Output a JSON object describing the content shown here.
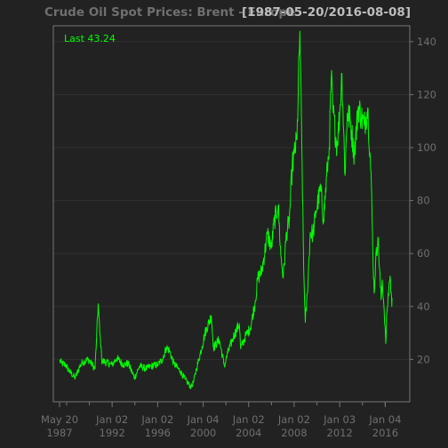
{
  "colors": {
    "background": "#222222",
    "frame": "#777777",
    "grid": "#303030",
    "series": "#00ff00",
    "title_left": "#6f6f6f",
    "title_right": "#bdbdbd",
    "tick_text": "#6f6f6f"
  },
  "chart_data": {
    "type": "line",
    "title": "Crude Oil Spot Prices: Brent - Europe",
    "date_range": "[1987-05-20/2016-08-08]",
    "last_label": "Last 43.24",
    "ylim": [
      4,
      146
    ],
    "yticks": [
      20,
      40,
      60,
      80,
      100,
      120,
      140
    ],
    "x_ticks": [
      {
        "date": "1987-05-20",
        "line1": "May 20",
        "line2": "1987"
      },
      {
        "date": "1992-01-02",
        "line1": "Jan 02",
        "line2": "1992"
      },
      {
        "date": "1996-01-02",
        "line1": "Jan 02",
        "line2": "1996"
      },
      {
        "date": "2000-01-04",
        "line1": "Jan 04",
        "line2": "2000"
      },
      {
        "date": "2004-01-02",
        "line1": "Jan 02",
        "line2": "2004"
      },
      {
        "date": "2008-01-02",
        "line1": "Jan 02",
        "line2": "2008"
      },
      {
        "date": "2012-01-03",
        "line1": "Jan 03",
        "line2": "2012"
      },
      {
        "date": "2016-01-04",
        "line1": "Jan 04",
        "line2": "2016"
      }
    ],
    "minor_tick_years": [
      1988,
      1990,
      1994,
      1998,
      2002,
      2006,
      2010,
      2014,
      2016
    ],
    "series": [
      {
        "x": [
          "1987-05-20",
          "1987-08-01",
          "1987-12-01",
          "1988-04-01",
          "1988-10-01",
          "1989-03-01",
          "1989-06-01",
          "1989-12-01",
          "1990-05-01",
          "1990-07-01",
          "1990-08-20",
          "1990-10-11",
          "1990-12-01",
          "1991-01-10",
          "1991-02-01",
          "1991-06-01",
          "1992-01-02",
          "1992-06-01",
          "1993-01-01",
          "1993-06-01",
          "1993-12-20",
          "1994-06-01",
          "1995-01-01",
          "1995-06-01",
          "1996-01-02",
          "1996-06-01",
          "1996-10-10",
          "1997-01-10",
          "1997-06-01",
          "1998-01-01",
          "1998-06-01",
          "1998-12-10",
          "1999-03-01",
          "1999-06-01",
          "1999-12-01",
          "2000-03-01",
          "2000-09-20",
          "2000-12-01",
          "2001-06-01",
          "2001-11-15",
          "2002-03-01",
          "2002-09-01",
          "2003-03-10",
          "2003-04-20",
          "2003-10-01",
          "2004-03-01",
          "2004-08-01",
          "2004-10-20",
          "2005-03-01",
          "2005-08-30",
          "2006-01-01",
          "2006-04-01",
          "2006-08-08",
          "2006-11-01",
          "2007-01-18",
          "2007-05-01",
          "2007-08-01",
          "2007-11-01",
          "2008-01-02",
          "2008-04-01",
          "2008-07-03",
          "2008-09-01",
          "2008-11-01",
          "2008-12-24",
          "2009-03-01",
          "2009-06-01",
          "2009-09-01",
          "2009-12-01",
          "2010-05-01",
          "2010-08-01",
          "2010-12-01",
          "2011-02-01",
          "2011-04-08",
          "2011-06-01",
          "2011-10-04",
          "2012-01-01",
          "2012-03-14",
          "2012-06-21",
          "2012-09-01",
          "2012-12-01",
          "2013-04-15",
          "2013-08-25",
          "2013-12-01",
          "2014-03-01",
          "2014-06-19",
          "2014-09-01",
          "2014-10-15",
          "2014-12-01",
          "2015-01-13",
          "2015-03-01",
          "2015-05-15",
          "2015-08-24",
          "2015-10-01",
          "2015-12-01",
          "2016-01-20",
          "2016-03-01",
          "2016-05-01",
          "2016-06-08",
          "2016-08-02",
          "2016-08-08"
        ],
        "y": [
          19.5,
          18.5,
          18.0,
          15.5,
          13.0,
          17.5,
          19.0,
          20.0,
          17.5,
          16.5,
          28.0,
          41.0,
          30.0,
          25.0,
          19.5,
          19.0,
          18.0,
          20.5,
          18.0,
          18.5,
          13.0,
          17.5,
          16.5,
          17.5,
          18.0,
          20.0,
          24.5,
          23.5,
          18.5,
          15.5,
          12.5,
          9.5,
          11.5,
          16.5,
          25.0,
          30.0,
          36.5,
          24.5,
          27.5,
          17.5,
          22.5,
          28.5,
          33.5,
          24.0,
          29.0,
          32.0,
          42.0,
          50.5,
          53.5,
          67.5,
          62.0,
          72.0,
          78.0,
          59.0,
          51.0,
          68.0,
          72.5,
          93.0,
          97.5,
          103.0,
          144.0,
          103.0,
          55.0,
          34.0,
          45.0,
          68.0,
          67.5,
          76.0,
          84.5,
          73.0,
          92.0,
          100.0,
          126.5,
          114.0,
          100.5,
          112.5,
          128.0,
          89.5,
          113.0,
          110.5,
          97.5,
          115.5,
          111.5,
          108.5,
          115.0,
          98.0,
          86.0,
          61.0,
          45.0,
          57.0,
          66.0,
          42.5,
          50.0,
          38.5,
          26.0,
          38.0,
          47.5,
          51.5,
          40.0,
          43.24
        ]
      }
    ]
  }
}
